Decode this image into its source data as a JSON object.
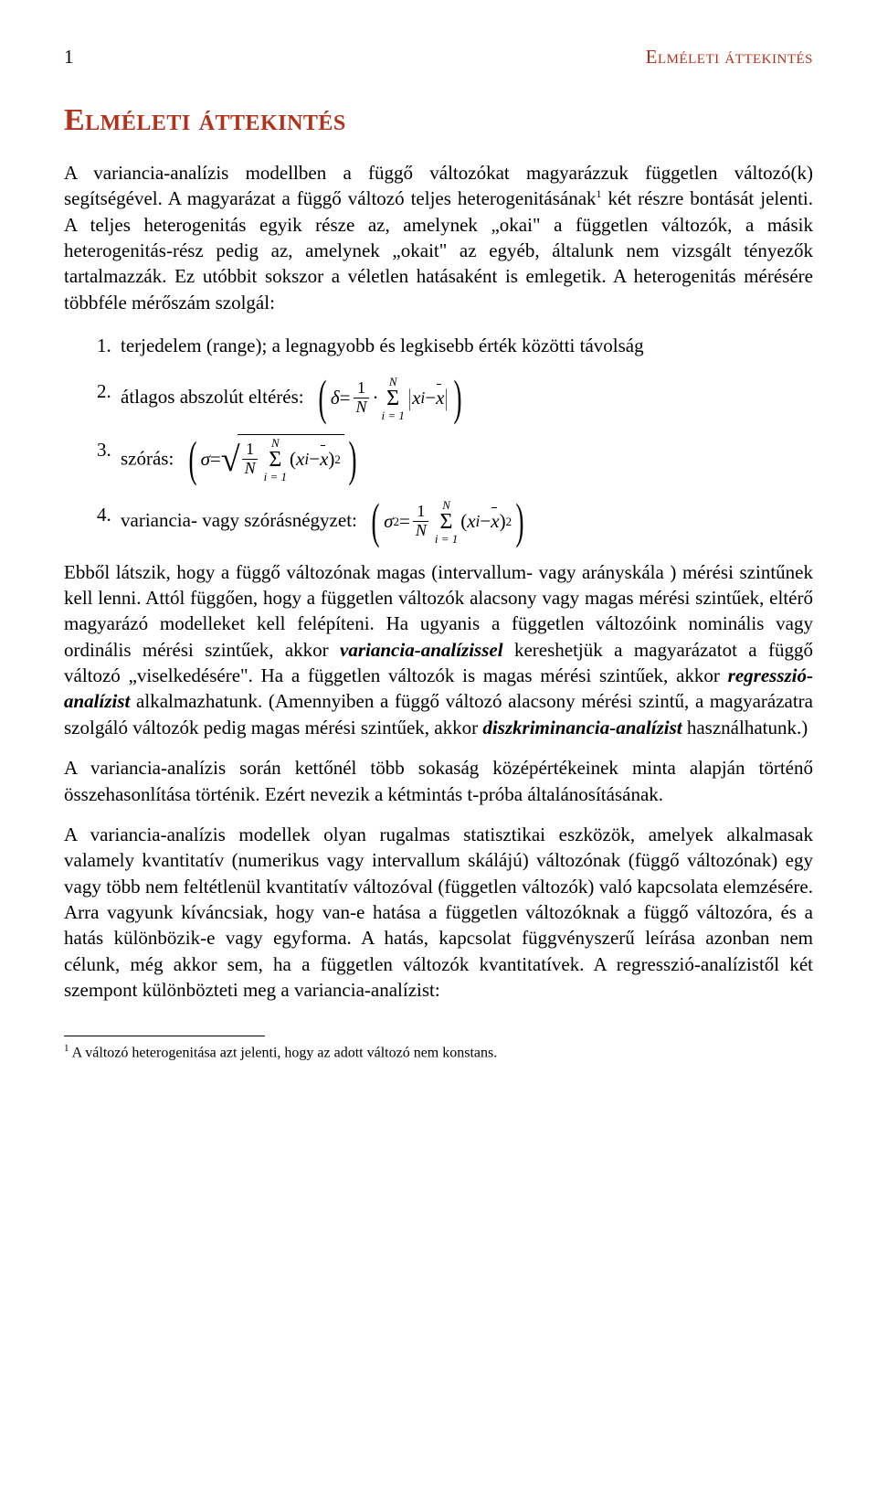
{
  "colors": {
    "heading": "#b0321a",
    "text": "#000000",
    "background": "#ffffff"
  },
  "typography": {
    "body_fontsize_pt": 16,
    "heading_fontsize_pt": 26,
    "running_head_fontsize_pt": 16,
    "footnote_fontsize_pt": 12,
    "font_family": "Georgia serif"
  },
  "header": {
    "page_number": "1",
    "running_head": "Elméleti áttekintés"
  },
  "title": "Elméleti áttekintés",
  "paragraphs": {
    "p1a": "A variancia-analízis modellben a függő változókat magyarázzuk független változó(k) segítségével. A magyarázat a függő változó teljes heterogenitásának",
    "p1b": " két részre bontását jelenti. A teljes heterogenitás egyik része az, amelynek „okai\" a független változók, a másik heterogenitás-rész pedig az, amelynek „okait\" az egyéb, általunk nem vizsgált tényezők tartalmazzák. Ez utóbbit sokszor a véletlen hatásaként is emlegetik. A heterogenitás mérésére többféle mérőszám szolgál:",
    "li1": "terjedelem (range); a legnagyobb és legkisebb érték közötti távolság",
    "li2_label": "átlagos abszolút eltérés:",
    "li3_label": "szórás:",
    "li4_label": "variancia- vagy szórásnégyzet:",
    "p2a": "Ebből látszik, hogy a függő változónak magas (intervallum- vagy arányskála ) mérési szintűnek kell lenni. Attól függően, hogy a független változók alacsony vagy magas mérési szintűek, eltérő magyarázó modelleket kell felépíteni. Ha ugyanis a független változóink nominális vagy ordinális mérési szintűek, akkor ",
    "p2_term1": "variancia-analízissel",
    "p2b": " kereshetjük a magyarázatot a függő változó „viselkedésére\". Ha a független változók is magas mérési szintűek, akkor ",
    "p2_term2": "regresszió-analízist",
    "p2c": " alkalmazhatunk. (Amennyiben a függő változó alacsony mérési szintű, a magyarázatra szolgáló változók pedig magas mérési szintűek, akkor ",
    "p2_term3": "diszkriminancia-analízist",
    "p2d": " használhatunk.)",
    "p3": "A variancia-analízis során kettőnél több sokaság középértékeinek minta alapján történő összehasonlítása történik. Ezért nevezik a kétmintás t-próba általánosításának.",
    "p4": "A variancia-analízis modellek olyan rugalmas statisztikai eszközök, amelyek alkalmasak valamely kvantitatív (numerikus vagy intervallum skálájú) változónak (függő változónak) egy vagy több nem feltétlenül kvantitatív változóval (független változók) való kapcsolata elemzésére. Arra vagyunk kíváncsiak, hogy van-e hatása a független változóknak a függő változóra, és a hatás különbözik-e vagy egyforma. A hatás, kapcsolat függvényszerű leírása azonban nem célunk, még akkor sem, ha a független változók kvantitatívek. A regresszió-analízistől két szempont különbözteti meg a variancia-analízist:"
  },
  "list_numbers": {
    "n1": "1.",
    "n2": "2.",
    "n3": "3.",
    "n4": "4."
  },
  "formulas": {
    "delta": "δ",
    "sigma": "σ",
    "eq": "=",
    "one": "1",
    "N": "N",
    "Nital": "N",
    "dot": "·",
    "Sigma": "Σ",
    "i_eq_1": "i = 1",
    "xi": "x",
    "i": "i",
    "minus": "−",
    "x": "x",
    "two": "2",
    "sq": "2"
  },
  "footnote": {
    "mark": "1",
    "text": " A változó heterogenitása azt jelenti, hogy az adott változó nem konstans."
  }
}
